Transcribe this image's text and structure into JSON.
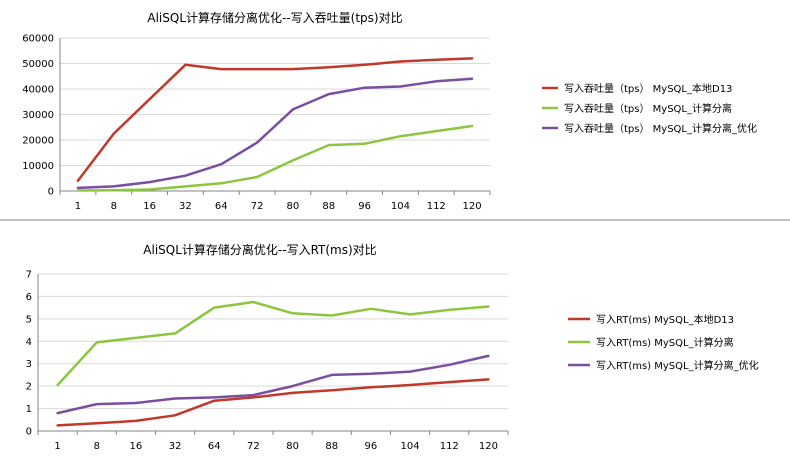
{
  "chart_data": [
    {
      "type": "line",
      "title": "AliSQL计算存储分离优化--写入吞吐量(tps)对比",
      "categories": [
        "1",
        "8",
        "16",
        "32",
        "64",
        "72",
        "80",
        "88",
        "96",
        "104",
        "112",
        "120"
      ],
      "ylim": [
        0,
        60000
      ],
      "yticks": [
        "0",
        "10000",
        "20000",
        "30000",
        "40000",
        "50000",
        "60000"
      ],
      "grid": true,
      "legend_position": "right",
      "series": [
        {
          "name": "写入吞吐量（tps） MySQL_本地D13",
          "color": "#c0392b",
          "values": [
            4000,
            22500,
            36000,
            49500,
            47800,
            47800,
            47800,
            48500,
            49500,
            50800,
            51500,
            52000
          ]
        },
        {
          "name": "写入吞吐量（tps） MySQL_计算分离",
          "color": "#8cc63f",
          "values": [
            200,
            300,
            600,
            1800,
            3000,
            5500,
            12000,
            18000,
            18500,
            21500,
            23500,
            25500
          ]
        },
        {
          "name": "写入吞吐量（tps） MySQL_计算分离_优化",
          "color": "#7b4fa0",
          "values": [
            1200,
            1800,
            3500,
            6000,
            10500,
            19000,
            32000,
            38000,
            40500,
            41000,
            43000,
            44000
          ]
        }
      ]
    },
    {
      "type": "line",
      "title": "AliSQL计算存储分离优化--写入RT(ms)对比",
      "categories": [
        "1",
        "8",
        "16",
        "32",
        "64",
        "72",
        "80",
        "88",
        "96",
        "104",
        "112",
        "120"
      ],
      "ylim": [
        0,
        7
      ],
      "yticks": [
        "0",
        "1",
        "2",
        "3",
        "4",
        "5",
        "6",
        "7"
      ],
      "grid": true,
      "legend_position": "right",
      "series": [
        {
          "name": "写入RT(ms) MySQL_本地D13",
          "color": "#c0392b",
          "values": [
            0.25,
            0.35,
            0.45,
            0.7,
            1.35,
            1.5,
            1.7,
            1.82,
            1.95,
            2.05,
            2.18,
            2.3
          ]
        },
        {
          "name": "写入RT(ms) MySQL_计算分离",
          "color": "#8cc63f",
          "values": [
            2.05,
            3.95,
            4.15,
            4.35,
            5.5,
            5.75,
            5.25,
            5.15,
            5.45,
            5.2,
            5.4,
            5.55
          ]
        },
        {
          "name": "写入RT(ms) MySQL_计算分离_优化",
          "color": "#7b4fa0",
          "values": [
            0.8,
            1.2,
            1.25,
            1.45,
            1.5,
            1.6,
            2.0,
            2.5,
            2.55,
            2.65,
            2.95,
            3.35
          ]
        }
      ]
    }
  ]
}
